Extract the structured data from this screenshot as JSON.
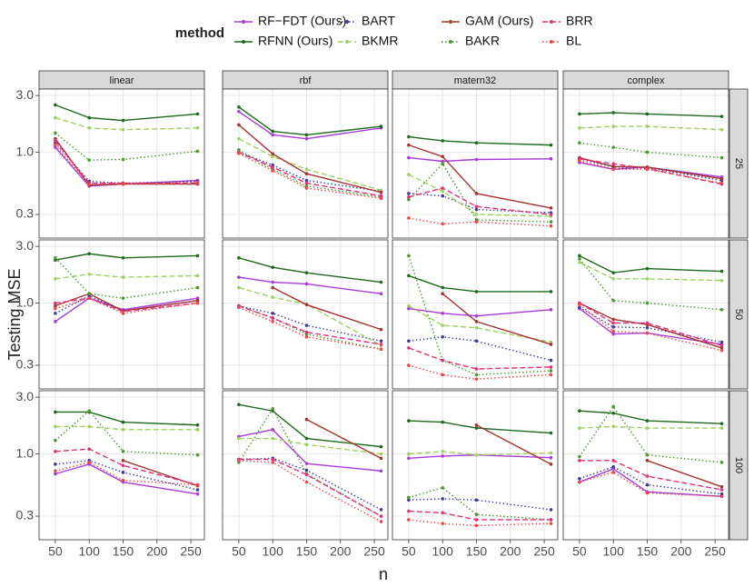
{
  "chart_data": {
    "type": "line",
    "ylabel": "Testing MSE",
    "xlabel": "n",
    "legend_title": "method",
    "log_y": true,
    "grid": true,
    "legend_position": "top",
    "x": [
      50,
      100,
      150,
      260
    ],
    "xlim": [
      26,
      270
    ],
    "xticks": [
      50,
      100,
      150,
      200,
      250
    ],
    "ylim": [
      0.19,
      3.4
    ],
    "yticks": [
      {
        "value": 0.3,
        "label": "0.3"
      },
      {
        "value": 1,
        "label": "1.0"
      },
      {
        "value": 3,
        "label": "3.0"
      }
    ],
    "columns": [
      "linear",
      "rbf",
      "matern32",
      "complex"
    ],
    "rows": [
      "25",
      "50",
      "100"
    ],
    "series": [
      {
        "name": "RF−FDT (Ours)",
        "color": "#a83bdb",
        "dash": "solid"
      },
      {
        "name": "RFNN (Ours)",
        "color": "#1b6b1b",
        "dash": "solid"
      },
      {
        "name": "BART",
        "color": "#3d3d9e",
        "dash": "dotted"
      },
      {
        "name": "BKMR",
        "color": "#9fd060",
        "dash": "dashed"
      },
      {
        "name": "GAM (Ours)",
        "color": "#a83232",
        "dash": "solid"
      },
      {
        "name": "BAKR",
        "color": "#4a9a2a",
        "dash": "dotted"
      },
      {
        "name": "BRR",
        "color": "#e0307a",
        "dash": "dashed"
      },
      {
        "name": "BL",
        "color": "#f04545",
        "dash": "dotted"
      }
    ],
    "panels": [
      [
        [
          [
            1.1,
            0.52,
            0.54,
            0.58
          ],
          [
            2.5,
            1.95,
            1.85,
            2.1
          ],
          [
            1.2,
            0.57,
            0.55,
            0.57
          ],
          [
            1.95,
            1.6,
            1.55,
            1.6
          ],
          [
            1.3,
            0.53,
            0.54,
            0.54
          ],
          [
            1.45,
            0.86,
            0.87,
            1.02
          ],
          [
            1.25,
            0.55,
            0.55,
            0.55
          ],
          [
            1.15,
            0.54,
            0.54,
            0.56
          ]
        ],
        [
          [
            2.2,
            1.4,
            1.3,
            1.6
          ],
          [
            2.4,
            1.5,
            1.4,
            1.65
          ],
          [
            1.0,
            0.78,
            0.58,
            0.47
          ],
          [
            1.3,
            0.92,
            0.72,
            0.48
          ],
          [
            1.7,
            0.97,
            0.66,
            0.46
          ],
          [
            1.05,
            0.72,
            0.52,
            0.42
          ],
          [
            1.0,
            0.75,
            0.55,
            0.43
          ],
          [
            0.98,
            0.7,
            0.5,
            0.41
          ]
        ],
        [
          [
            0.9,
            0.84,
            0.87,
            0.88
          ],
          [
            1.35,
            1.25,
            1.2,
            1.15
          ],
          [
            0.45,
            0.43,
            0.33,
            0.31
          ],
          [
            0.65,
            0.47,
            0.3,
            0.29
          ],
          [
            1.15,
            0.92,
            0.45,
            0.34
          ],
          [
            0.4,
            0.8,
            0.27,
            0.26
          ],
          [
            0.42,
            0.5,
            0.35,
            0.3
          ],
          [
            0.28,
            0.25,
            0.26,
            0.24
          ]
        ],
        [
          [
            0.82,
            0.72,
            0.75,
            0.62
          ],
          [
            2.1,
            2.15,
            2.1,
            2.0
          ],
          [
            0.88,
            0.75,
            0.74,
            0.58
          ],
          [
            1.6,
            1.65,
            1.65,
            1.55
          ],
          [
            0.9,
            0.76,
            0.75,
            0.6
          ],
          [
            1.2,
            1.1,
            1.0,
            0.9
          ],
          [
            0.88,
            0.8,
            0.73,
            0.54
          ],
          [
            0.85,
            0.72,
            0.72,
            0.55
          ]
        ]
      ],
      [
        [
          [
            0.7,
            1.1,
            0.88,
            1.1
          ],
          [
            2.3,
            2.6,
            2.4,
            2.5
          ],
          [
            0.82,
            1.15,
            0.86,
            1.05
          ],
          [
            1.6,
            1.75,
            1.65,
            1.7
          ],
          [
            0.95,
            1.2,
            0.86,
            1.05
          ],
          [
            2.4,
            1.2,
            1.1,
            1.35
          ],
          [
            1.0,
            1.1,
            0.85,
            1.0
          ],
          [
            0.9,
            1.1,
            0.82,
            1.0
          ]
        ],
        [
          [
            1.65,
            1.5,
            1.45,
            1.2
          ],
          [
            2.4,
            2.0,
            1.8,
            1.5
          ],
          [
            0.95,
            0.82,
            0.65,
            0.48
          ],
          [
            1.35,
            1.12,
            0.98,
            0.44
          ],
          [
            null,
            1.35,
            0.97,
            0.6
          ],
          [
            0.95,
            0.75,
            0.55,
            0.41
          ],
          [
            0.95,
            0.75,
            0.57,
            0.45
          ],
          [
            0.92,
            0.7,
            0.52,
            0.41
          ]
        ],
        [
          [
            0.9,
            0.82,
            0.78,
            0.88
          ],
          [
            1.7,
            1.35,
            1.25,
            1.25
          ],
          [
            0.48,
            0.52,
            0.48,
            0.33
          ],
          [
            0.95,
            0.65,
            0.62,
            0.47
          ],
          [
            null,
            1.2,
            0.7,
            0.45
          ],
          [
            2.5,
            0.33,
            0.25,
            0.27
          ],
          [
            0.42,
            0.33,
            0.28,
            0.29
          ],
          [
            0.3,
            0.25,
            0.23,
            0.25
          ]
        ],
        [
          [
            0.9,
            0.55,
            0.56,
            0.45
          ],
          [
            2.5,
            1.8,
            1.95,
            1.85
          ],
          [
            0.92,
            0.63,
            0.62,
            0.47
          ],
          [
            2.2,
            1.6,
            1.6,
            1.55
          ],
          [
            1.0,
            0.73,
            0.66,
            0.42
          ],
          [
            2.35,
            1.05,
            1.0,
            0.88
          ],
          [
            1.0,
            0.68,
            0.68,
            0.44
          ],
          [
            0.97,
            0.58,
            0.56,
            0.4
          ]
        ]
      ],
      [
        [
          [
            0.68,
            0.82,
            0.58,
            0.46
          ],
          [
            2.25,
            2.25,
            1.85,
            1.75
          ],
          [
            0.82,
            0.88,
            0.7,
            0.5
          ],
          [
            1.7,
            1.7,
            1.6,
            1.6
          ],
          [
            null,
            null,
            0.88,
            0.54
          ],
          [
            1.3,
            2.3,
            1.05,
            0.98
          ],
          [
            1.05,
            1.1,
            0.8,
            0.55
          ],
          [
            0.72,
            0.85,
            0.6,
            0.55
          ]
        ],
        [
          [
            1.4,
            1.6,
            0.83,
            0.72
          ],
          [
            2.6,
            2.3,
            1.35,
            1.15
          ],
          [
            0.9,
            0.92,
            0.73,
            0.34
          ],
          [
            1.35,
            1.35,
            1.2,
            1.0
          ],
          [
            null,
            null,
            1.95,
            0.92
          ],
          [
            0.85,
            2.4,
            0.68,
            0.3
          ],
          [
            0.9,
            0.9,
            0.67,
            0.3
          ],
          [
            0.88,
            0.85,
            0.58,
            0.27
          ]
        ],
        [
          [
            0.92,
            0.96,
            0.98,
            0.93
          ],
          [
            1.9,
            1.85,
            1.65,
            1.5
          ],
          [
            0.41,
            0.42,
            0.41,
            0.34
          ],
          [
            1.0,
            1.05,
            0.98,
            1.02
          ],
          [
            null,
            null,
            1.75,
            0.82
          ],
          [
            0.43,
            0.52,
            0.31,
            0.28
          ],
          [
            0.33,
            0.32,
            0.28,
            0.28
          ],
          [
            0.28,
            0.26,
            0.25,
            0.26
          ]
        ],
        [
          [
            0.58,
            0.75,
            0.48,
            0.44
          ],
          [
            2.3,
            2.2,
            1.9,
            1.8
          ],
          [
            0.62,
            0.78,
            0.55,
            0.46
          ],
          [
            1.65,
            1.7,
            1.65,
            1.65
          ],
          [
            null,
            null,
            0.88,
            0.53
          ],
          [
            0.95,
            2.5,
            0.98,
            0.85
          ],
          [
            0.88,
            0.88,
            0.65,
            0.5
          ],
          [
            0.58,
            0.7,
            0.47,
            0.44
          ]
        ]
      ]
    ]
  }
}
